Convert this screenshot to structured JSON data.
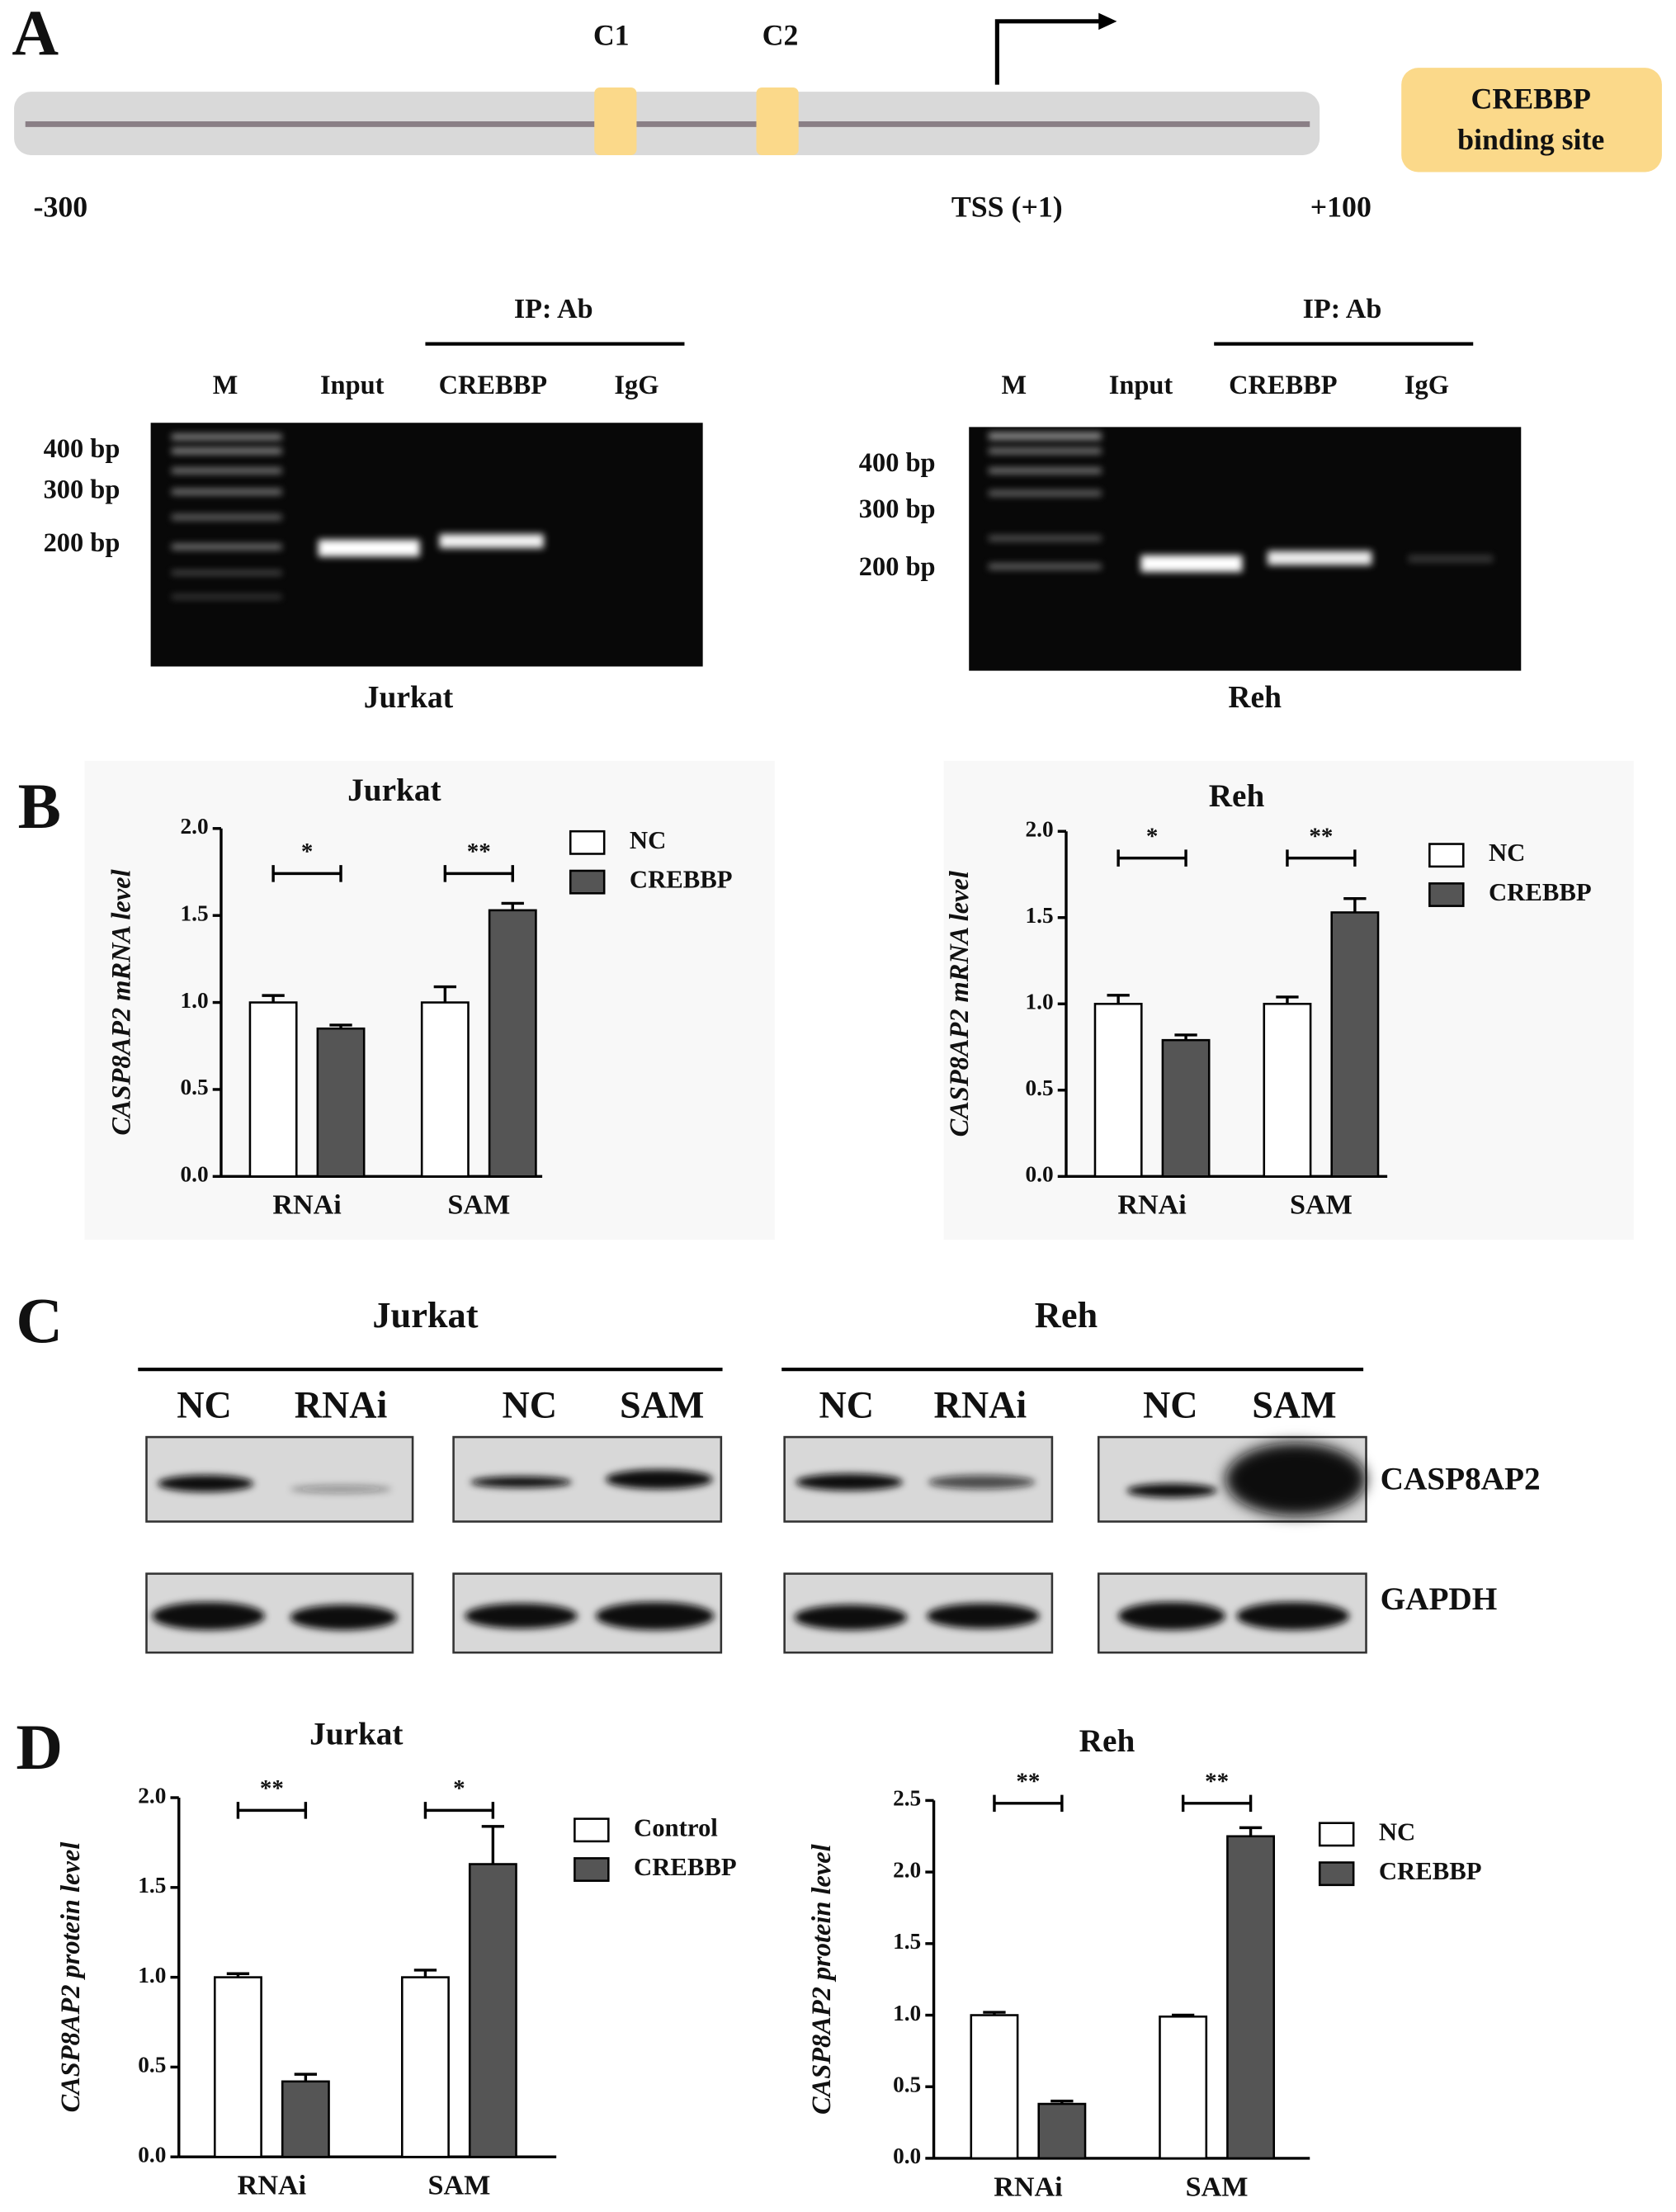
{
  "panel_labels": [
    "A",
    "B",
    "C",
    "D"
  ],
  "promoter": {
    "sites": [
      "C1",
      "C2"
    ],
    "legend": [
      "CREBBP",
      "binding site"
    ],
    "positions": [
      "-300",
      "TSS (+1)",
      "+100"
    ]
  },
  "gels": [
    {
      "ip": "IP: Ab",
      "lanes": [
        "M",
        "Input",
        "CREBBP",
        "IgG"
      ],
      "markers": [
        "400 bp",
        "300 bp",
        "200 bp"
      ],
      "caption": "Jurkat"
    },
    {
      "ip": "IP: Ab",
      "lanes": [
        "M",
        "Input",
        "CREBBP",
        "IgG"
      ],
      "markers": [
        "400 bp",
        "300 bp",
        "200 bp"
      ],
      "caption": "Reh"
    }
  ],
  "western": {
    "cell_lines": [
      "Jurkat",
      "Reh"
    ],
    "lanes": [
      "NC",
      "RNAi",
      "NC",
      "SAM",
      "NC",
      "RNAi",
      "NC",
      "SAM"
    ],
    "proteins": [
      "CASP8AP2",
      "GAPDH"
    ]
  },
  "chart_data": [
    {
      "type": "bar",
      "title": "Jurkat",
      "ylabel": "CASP8AP2 mRNA level",
      "categories": [
        "RNAi",
        "SAM"
      ],
      "series": [
        {
          "name": "NC",
          "color": "#ffffff",
          "values": [
            1.0,
            1.0
          ],
          "errors": [
            0.04,
            0.09
          ]
        },
        {
          "name": "CREBBP",
          "color": "#555555",
          "values": [
            0.85,
            1.53
          ],
          "errors": [
            0.02,
            0.04
          ]
        }
      ],
      "ylim": [
        0,
        2
      ],
      "yticks": [
        {
          "value": 0,
          "label": "0.0"
        },
        0.5,
        {
          "value": 1,
          "label": "1.0"
        },
        1.5,
        {
          "value": 2,
          "label": "2.0"
        }
      ],
      "significance": [
        "*",
        "**"
      ]
    },
    {
      "type": "bar",
      "title": "Reh",
      "ylabel": "CASP8AP2 mRNA level",
      "categories": [
        "RNAi",
        "SAM"
      ],
      "series": [
        {
          "name": "NC",
          "color": "#ffffff",
          "values": [
            1.0,
            1.0
          ],
          "errors": [
            0.05,
            0.04
          ]
        },
        {
          "name": "CREBBP",
          "color": "#555555",
          "values": [
            0.79,
            1.53
          ],
          "errors": [
            0.03,
            0.08
          ]
        }
      ],
      "ylim": [
        0,
        2
      ],
      "yticks": [
        {
          "value": 0,
          "label": "0.0"
        },
        0.5,
        {
          "value": 1,
          "label": "1.0"
        },
        1.5,
        {
          "value": 2,
          "label": "2.0"
        }
      ],
      "significance": [
        "*",
        "**"
      ]
    },
    {
      "type": "bar",
      "title": "Jurkat",
      "ylabel": "CASP8AP2 protein level",
      "categories": [
        "RNAi",
        "SAM"
      ],
      "series": [
        {
          "name": "Control",
          "color": "#ffffff",
          "values": [
            1.0,
            1.0
          ],
          "errors": [
            0.02,
            0.04
          ]
        },
        {
          "name": "CREBBP",
          "color": "#555555",
          "values": [
            0.42,
            1.63
          ],
          "errors": [
            0.04,
            0.21
          ]
        }
      ],
      "ylim": [
        0,
        2
      ],
      "yticks": [
        {
          "value": 0,
          "label": "0.0"
        },
        0.5,
        {
          "value": 1,
          "label": "1.0"
        },
        1.5,
        {
          "value": 2,
          "label": "2.0"
        }
      ],
      "significance": [
        "**",
        "*"
      ]
    },
    {
      "type": "bar",
      "title": "Reh",
      "ylabel": "CASP8AP2 protein level",
      "categories": [
        "RNAi",
        "SAM"
      ],
      "series": [
        {
          "name": "NC",
          "color": "#ffffff",
          "values": [
            1.0,
            0.99
          ],
          "errors": [
            0.02,
            0.01
          ]
        },
        {
          "name": "CREBBP",
          "color": "#555555",
          "values": [
            0.38,
            2.25
          ],
          "errors": [
            0.02,
            0.06
          ]
        }
      ],
      "ylim": [
        0,
        2.5
      ],
      "yticks": [
        {
          "value": 0,
          "label": "0.0"
        },
        0.5,
        {
          "value": 1,
          "label": "1.0"
        },
        1.5,
        {
          "value": 2,
          "label": "2.0"
        },
        2.5
      ],
      "significance": [
        "**",
        "**"
      ]
    }
  ]
}
